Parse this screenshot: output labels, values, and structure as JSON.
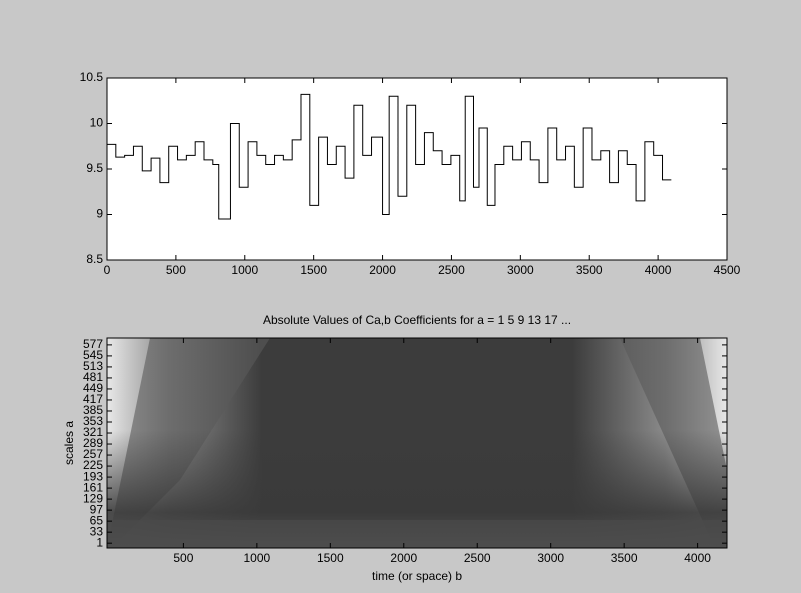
{
  "chart_data": [
    {
      "type": "stairs",
      "color": "#000000",
      "x": [
        0,
        64,
        128,
        192,
        256,
        320,
        384,
        448,
        512,
        576,
        640,
        704,
        768,
        811,
        896,
        960,
        1024,
        1088,
        1152,
        1216,
        1280,
        1344,
        1408,
        1472,
        1536,
        1600,
        1664,
        1728,
        1792,
        1856,
        1920,
        2000,
        2048,
        2112,
        2176,
        2240,
        2304,
        2368,
        2432,
        2496,
        2560,
        2600,
        2660,
        2700,
        2760,
        2816,
        2880,
        2944,
        3008,
        3072,
        3136,
        3200,
        3264,
        3328,
        3392,
        3456,
        3520,
        3584,
        3648,
        3712,
        3776,
        3840,
        3904,
        3968,
        4032,
        4096
      ],
      "series": [
        {
          "values": [
            9.77,
            9.63,
            9.65,
            9.75,
            9.48,
            9.62,
            9.35,
            9.75,
            9.6,
            9.65,
            9.8,
            9.6,
            9.55,
            8.95,
            10.0,
            9.3,
            9.8,
            9.65,
            9.55,
            9.65,
            9.6,
            9.82,
            10.32,
            9.1,
            9.85,
            9.55,
            9.75,
            9.4,
            10.2,
            9.65,
            9.85,
            9.0,
            10.3,
            9.2,
            10.2,
            9.55,
            9.9,
            9.7,
            9.55,
            9.65,
            9.15,
            10.3,
            9.3,
            9.95,
            9.1,
            9.55,
            9.75,
            9.6,
            9.8,
            9.6,
            9.35,
            9.95,
            9.6,
            9.75,
            9.3,
            9.95,
            9.6,
            9.7,
            9.35,
            9.7,
            9.55,
            9.15,
            9.8,
            9.65,
            9.38,
            9.38
          ]
        }
      ],
      "xlim": [
        0,
        4500
      ],
      "xticks": [
        0,
        500,
        1000,
        1500,
        2000,
        2500,
        3000,
        3500,
        4000,
        4500
      ],
      "ylim": [
        8.5,
        10.5
      ],
      "yticks": [
        8.5,
        9,
        9.5,
        10,
        10.5
      ]
    },
    {
      "type": "scalogram",
      "title": "Absolute Values of Ca,b Coefficients for a =  1 5 9 13 17 ...",
      "x_label": "time (or space) b",
      "y_label": "scales a",
      "xlim": [
        -20,
        4200
      ],
      "xticks": [
        500,
        1000,
        1500,
        2000,
        2500,
        3000,
        3500,
        4000
      ],
      "ylim": [
        -13,
        597
      ],
      "yticks": [
        1,
        33,
        65,
        97,
        129,
        161,
        193,
        225,
        257,
        289,
        321,
        353,
        385,
        417,
        449,
        481,
        513,
        545,
        577
      ]
    }
  ]
}
